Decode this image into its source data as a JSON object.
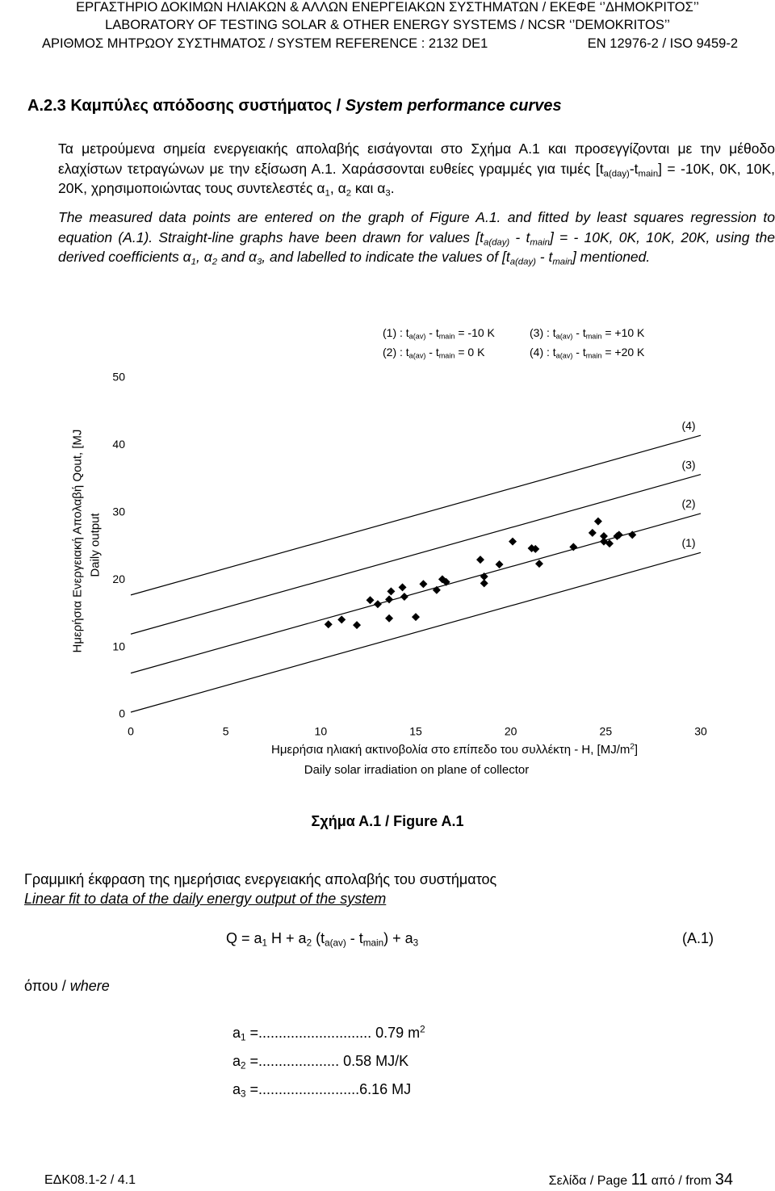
{
  "header": {
    "lines": [
      "ΕΡΓΑΣΤΗΡΙΟ ΔΟΚΙΜΩΝ ΗΛΙΑΚΩΝ & ΑΛΛΩΝ ΕΝΕΡΓΕΙΑΚΩΝ ΣΥΣΤΗΜΑΤΩΝ / ΕΚΕΦΕ ‘’ΔΗΜΟΚΡΙΤΟΣ’’",
      "LABORATORY OF TESTING SOLAR & OTHER ENERGY SYSTEMS / NCSR ‘’DEMOKRITOS’’"
    ],
    "reference": "ΑΡΙΘΜΟΣ ΜΗΤΡΩΟΥ ΣΥΣΤΗΜΑΤΟΣ / SYSTEM REFERENCE : 2132 DE1",
    "standard": "EN 12976-2 / ISO 9459-2"
  },
  "section": {
    "title": [
      "A.2.3 Καμπύλες απόδοσης συστήματος / ",
      "System performance curves"
    ]
  },
  "paragraph_gr": [
    "Τα μετρούμενα σημεία ενεργειακής απολαβής εισάγονται στο  Σχήμα Α.1 και προσεγγίζονται με την μέθοδο ελαχίστων τετραγώνων με την εξίσωση Α.1. Χαράσσονται ευθείες γραμμές για τιμές [t",
    "a(day)",
    "-t",
    "main",
    "] = -10K, 0K, 10K, 20K, χρησιμοποιώντας τους συντελεστές α",
    "1",
    ", α",
    "2",
    " και α",
    "3",
    "."
  ],
  "paragraph_en": [
    "The measured data points are entered on the graph of Figure A.1. and fitted by least squares regression to equation (A.1). Straight-line graphs have been drawn for values  [t",
    "a(day)",
    " - t",
    "main",
    "] = - 10K, 0K, 10K, 20K, using the derived coefficients α",
    "1",
    ", α",
    "2",
    " and α",
    "3",
    ", and labelled to indicate the values of [t",
    "a(day)",
    " - t",
    "main",
    "] mentioned."
  ],
  "chart_data": {
    "type": "scatter",
    "xlabel": [
      "Ημερήσια ηλιακή ακτινοβολία στο επίπεδο του συλλέκτη - H, [MJ/m",
      "2",
      "]"
    ],
    "xlabel2": "Daily solar irradiation on plane of collector",
    "ylabel": "Ημερήσια Ενεργειακή Απολαβή Qout, [MJ",
    "ylabel2": "Daily output",
    "xlim": [
      0,
      30
    ],
    "ylim": [
      0,
      50
    ],
    "xticks": [
      0,
      5,
      10,
      15,
      20,
      25,
      30
    ],
    "yticks": [
      0,
      10,
      20,
      30,
      40,
      50
    ],
    "points": {
      "color": "#000000",
      "x": [
        10.4,
        11.1,
        11.9,
        12.6,
        13.0,
        13.6,
        13.7,
        13.6,
        14.3,
        14.4,
        15.0,
        15.4,
        16.1,
        16.4,
        16.6,
        18.4,
        18.6,
        18.6,
        19.4,
        20.1,
        21.1,
        21.3,
        21.5,
        23.3,
        24.3,
        24.6,
        24.9,
        24.9,
        25.2,
        25.6,
        25.7,
        26.4
      ],
      "values": [
        13.4,
        14.1,
        13.3,
        17.0,
        16.4,
        14.3,
        18.3,
        17.1,
        18.9,
        17.5,
        14.5,
        19.4,
        18.5,
        20.1,
        19.7,
        23.0,
        20.5,
        19.5,
        22.3,
        25.7,
        24.7,
        24.6,
        22.4,
        24.9,
        27.0,
        28.7,
        26.5,
        25.7,
        25.4,
        26.5,
        26.7,
        26.7
      ]
    },
    "lines": [
      {
        "name": "(1)",
        "color": "#000000",
        "x": [
          0,
          30
        ],
        "values": [
          0.36,
          24.06
        ]
      },
      {
        "name": "(2)",
        "color": "#000000",
        "x": [
          0,
          30
        ],
        "values": [
          6.16,
          29.86
        ]
      },
      {
        "name": "(3)",
        "color": "#000000",
        "x": [
          0,
          30
        ],
        "values": [
          11.96,
          35.66
        ]
      },
      {
        "name": "(4)",
        "color": "#000000",
        "x": [
          0,
          30
        ],
        "values": [
          17.76,
          41.46
        ]
      }
    ],
    "legend": [
      [
        "(1) : t",
        "a(av)",
        " - t",
        "main",
        " = -10 K"
      ],
      [
        "(3) : t",
        "a(av)",
        " - t",
        "main",
        " = +10 K"
      ],
      [
        "(2) : t",
        "a(av)",
        " - t",
        "main",
        " =  0 K"
      ],
      [
        "(4) : t",
        "a(av)",
        " - t",
        "main",
        " = +20 K"
      ]
    ]
  },
  "caption": "Σχήμα Α.1 / Figure A.1",
  "fit_title": [
    "Γραμμική έκφραση της ημερήσιας ενεργειακής απολαβής του συστήματος",
    "Linear fit to data of the daily energy output of the system"
  ],
  "equation": {
    "runs": [
      "Q  =  a",
      "1",
      " H + a",
      "2",
      " (t",
      "a(av)",
      " - t",
      "main",
      ") + a",
      "3"
    ],
    "number": "(A.1)"
  },
  "where": [
    "όπου / ",
    "where"
  ],
  "coefficients": [
    {
      "symbol": "a",
      "sub": "1",
      "text": " =............................ 0.79 m",
      "sup": "2"
    },
    {
      "symbol": "a",
      "sub": "2",
      "text": " =....................  0.58 MJ/K"
    },
    {
      "symbol": "a",
      "sub": "3",
      "text": " =.........................6.16 MJ"
    }
  ],
  "footer": {
    "left": "ΕΔΚ08.1-2 / 4.1",
    "page": [
      "Σελίδα / Page ",
      "11",
      " από / from ",
      "34"
    ]
  }
}
